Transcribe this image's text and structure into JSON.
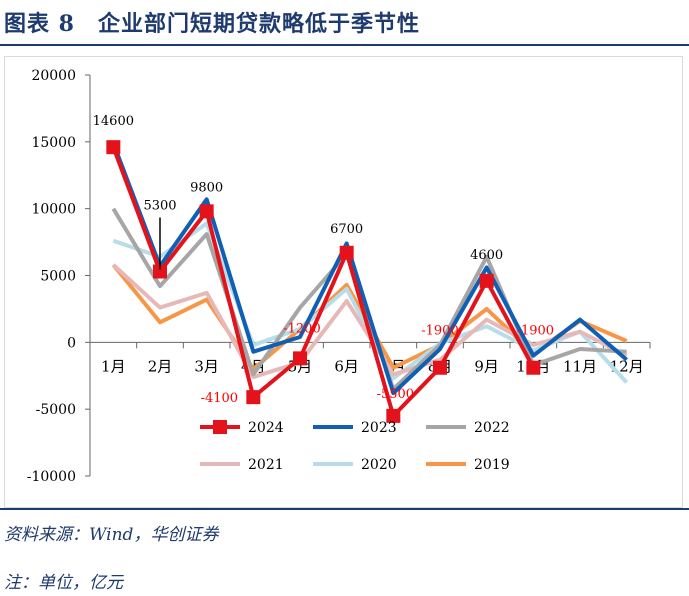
{
  "title": "图表 8　企业部门短期贷款略低于季节性",
  "source": "资料来源：Wind，华创证券",
  "note": "注：单位，亿元",
  "chart_data": {
    "type": "line",
    "categories": [
      "1月",
      "2月",
      "3月",
      "4月",
      "5月",
      "6月",
      "7月",
      "8月",
      "9月",
      "10月",
      "11月",
      "12月"
    ],
    "ylim": [
      -10000,
      20000
    ],
    "yticks": [
      -10000,
      -5000,
      0,
      5000,
      10000,
      15000,
      20000
    ],
    "grid": false,
    "legend_position": "bottom-inside",
    "series": [
      {
        "name": "2024",
        "color": "#e3121b",
        "marker": "square",
        "values": [
          14600,
          5300,
          9800,
          -4100,
          -1200,
          6700,
          -5500,
          -1900,
          4600,
          -1900,
          null,
          null
        ]
      },
      {
        "name": "2023",
        "color": "#0f5fb5",
        "values": [
          14900,
          5700,
          10700,
          -700,
          400,
          7400,
          -3800,
          -500,
          5600,
          -1000,
          1700,
          -1300
        ]
      },
      {
        "name": "2022",
        "color": "#a6a6a6",
        "values": [
          10000,
          4200,
          8100,
          -2400,
          2600,
          6600,
          -3500,
          -200,
          6400,
          -1700,
          -500,
          -700
        ]
      },
      {
        "name": "2021",
        "color": "#e6b8b7",
        "values": [
          5800,
          2600,
          3700,
          -2600,
          -1500,
          3100,
          -2400,
          -1300,
          1700,
          -200,
          800,
          -1000
        ]
      },
      {
        "name": "2020",
        "color": "#b7dde8",
        "values": [
          7600,
          6400,
          8900,
          -200,
          1000,
          4000,
          -2700,
          -100,
          1200,
          -600,
          800,
          -3000
        ]
      },
      {
        "name": "2019",
        "color": "#f79646",
        "values": [
          5800,
          1500,
          3200,
          -2000,
          1000,
          4300,
          -1900,
          -200,
          2500,
          -800,
          1600,
          100
        ]
      }
    ],
    "data_labels": [
      {
        "index": 0,
        "text": "14600",
        "color": "#000000"
      },
      {
        "index": 1,
        "text": "5300",
        "color": "#000000"
      },
      {
        "index": 2,
        "text": "9800",
        "color": "#000000"
      },
      {
        "index": 3,
        "text": "-4100",
        "color": "#ff0000"
      },
      {
        "index": 4,
        "text": "-1200",
        "color": "#ff0000"
      },
      {
        "index": 5,
        "text": "6700",
        "color": "#000000"
      },
      {
        "index": 6,
        "text": "-5500",
        "color": "#ff0000"
      },
      {
        "index": 7,
        "text": "-1900",
        "color": "#ff0000"
      },
      {
        "index": 8,
        "text": "4600",
        "color": "#000000"
      },
      {
        "index": 9,
        "text": "-1900",
        "color": "#ff0000"
      }
    ]
  }
}
